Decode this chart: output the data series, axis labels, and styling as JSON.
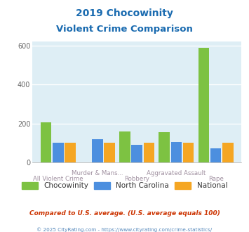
{
  "title_line1": "2019 Chocowinity",
  "title_line2": "Violent Crime Comparison",
  "categories": [
    "All Violent Crime",
    "Murder & Mans...",
    "Robbery",
    "Aggravated Assault",
    "Rape"
  ],
  "chocowinity": [
    205,
    0,
    158,
    155,
    590
  ],
  "north_carolina": [
    102,
    120,
    90,
    105,
    72
  ],
  "national": [
    102,
    100,
    100,
    102,
    100
  ],
  "colors": {
    "chocowinity": "#7dc242",
    "north_carolina": "#4c8fdf",
    "national": "#f5a623"
  },
  "ylim": [
    0,
    620
  ],
  "yticks": [
    0,
    200,
    400,
    600
  ],
  "background_color": "#deeef5",
  "title_color": "#1a6bb0",
  "xlabel_color": "#a090a0",
  "footer_color": "#cc3300",
  "copyright_color": "#5588bb",
  "footer_note": "Compared to U.S. average. (U.S. average equals 100)",
  "copyright": "© 2025 CityRating.com - https://www.cityrating.com/crime-statistics/",
  "legend_labels": [
    "Chocowinity",
    "North Carolina",
    "National"
  ],
  "legend_text_color": "#333333"
}
